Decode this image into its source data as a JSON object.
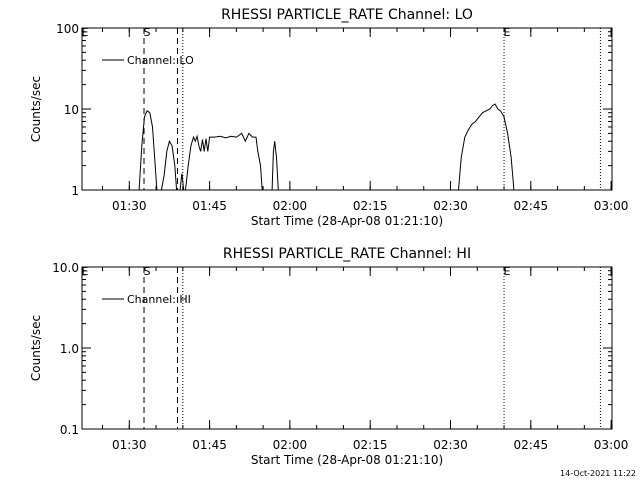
{
  "footer": {
    "date_stamp": "14-Oct-2021 11:22"
  },
  "chart_data": [
    {
      "type": "line",
      "title": "RHESSI PARTICLE_RATE Channel: LO",
      "xlabel": "Start Time (28-Apr-08 01:21:10)",
      "ylabel": "Counts/sec",
      "y_scale": "log",
      "ylim": [
        1,
        100
      ],
      "y_ticks": [
        {
          "value": 1,
          "label": "1"
        },
        {
          "value": 10,
          "label": "10"
        },
        {
          "value": 100,
          "label": "100"
        }
      ],
      "xlim": [
        "01:21:10",
        "03:00:10"
      ],
      "x_ticks": [
        "01:30",
        "01:45",
        "02:00",
        "02:15",
        "02:30",
        "02:45",
        "03:00"
      ],
      "legend": {
        "position": "top-left",
        "entries": [
          "Channel: LO"
        ]
      },
      "markers": [
        {
          "label": "E",
          "time": "01:21:10",
          "style": "none"
        },
        {
          "label": "S",
          "time": "01:32:45",
          "style": "dashed"
        },
        {
          "label": "",
          "time": "01:39:00",
          "style": "dashed"
        },
        {
          "label": "",
          "time": "01:40:00",
          "style": "dotted"
        },
        {
          "label": "E",
          "time": "02:40:00",
          "style": "dotted"
        },
        {
          "label": "",
          "time": "02:58:00",
          "style": "dotted"
        }
      ],
      "series": [
        {
          "name": "Channel: LO",
          "segments": [
            [
              [
                "01:31:50",
                1
              ],
              [
                "01:32:20",
                3.5
              ],
              [
                "01:32:50",
                8
              ],
              [
                "01:33:20",
                9.5
              ],
              [
                "01:33:50",
                9
              ],
              [
                "01:34:20",
                6
              ],
              [
                "01:34:50",
                2
              ],
              [
                "01:35:10",
                1
              ]
            ],
            [
              [
                "01:36:00",
                1
              ],
              [
                "01:36:30",
                1.5
              ],
              [
                "01:37:00",
                3
              ],
              [
                "01:37:30",
                4
              ],
              [
                "01:38:00",
                3.5
              ],
              [
                "01:38:30",
                2
              ],
              [
                "01:38:50",
                1
              ]
            ],
            [
              [
                "01:39:30",
                1
              ],
              [
                "01:39:50",
                1.6
              ],
              [
                "01:40:10",
                1
              ]
            ],
            [
              [
                "01:40:30",
                1
              ],
              [
                "01:41:00",
                2
              ],
              [
                "01:41:30",
                3.5
              ],
              [
                "01:42:00",
                4.5
              ],
              [
                "01:42:20",
                4
              ],
              [
                "01:42:40",
                4.6
              ],
              [
                "01:43:00",
                3.5
              ],
              [
                "01:43:20",
                3
              ],
              [
                "01:43:40",
                4.2
              ],
              [
                "01:44:00",
                3
              ],
              [
                "01:44:20",
                4.3
              ],
              [
                "01:44:40",
                3
              ],
              [
                "01:45:00",
                4.5
              ],
              [
                "01:46:00",
                4.5
              ],
              [
                "01:47:00",
                4.6
              ],
              [
                "01:48:00",
                4.4
              ],
              [
                "01:49:00",
                4.6
              ],
              [
                "01:50:00",
                4.5
              ],
              [
                "01:51:00",
                5
              ],
              [
                "01:51:40",
                4
              ],
              [
                "01:52:20",
                5
              ],
              [
                "01:53:00",
                4.5
              ],
              [
                "01:53:40",
                4.5
              ],
              [
                "01:54:00",
                3
              ],
              [
                "01:54:30",
                2
              ],
              [
                "01:54:50",
                1
              ]
            ],
            [
              [
                "01:56:40",
                1
              ],
              [
                "01:56:55",
                3
              ],
              [
                "01:57:10",
                4
              ],
              [
                "01:57:30",
                2.5
              ],
              [
                "01:57:50",
                1
              ]
            ],
            [
              [
                "02:31:30",
                1
              ],
              [
                "02:32:00",
                2.5
              ],
              [
                "02:32:40",
                4.5
              ],
              [
                "02:33:20",
                5.5
              ],
              [
                "02:34:00",
                6.5
              ],
              [
                "02:34:40",
                7
              ],
              [
                "02:35:20",
                8
              ],
              [
                "02:36:00",
                9
              ],
              [
                "02:36:40",
                9.5
              ],
              [
                "02:37:20",
                10
              ],
              [
                "02:37:50",
                11
              ],
              [
                "02:38:20",
                11.5
              ],
              [
                "02:38:50",
                10
              ],
              [
                "02:39:20",
                9.5
              ],
              [
                "02:40:00",
                8
              ],
              [
                "02:40:40",
                5
              ],
              [
                "02:41:20",
                2.5
              ],
              [
                "02:41:50",
                1
              ]
            ]
          ]
        }
      ]
    },
    {
      "type": "line",
      "title": "RHESSI PARTICLE_RATE Channel: HI",
      "xlabel": "Start Time (28-Apr-08 01:21:10)",
      "ylabel": "Counts/sec",
      "y_scale": "log",
      "ylim": [
        0.1,
        10
      ],
      "y_ticks": [
        {
          "value": 0.1,
          "label": "0.1"
        },
        {
          "value": 1,
          "label": "1.0"
        },
        {
          "value": 10,
          "label": "10.0"
        }
      ],
      "xlim": [
        "01:21:10",
        "03:00:10"
      ],
      "x_ticks": [
        "01:30",
        "01:45",
        "02:00",
        "02:15",
        "02:30",
        "02:45",
        "03:00"
      ],
      "legend": {
        "position": "top-left",
        "entries": [
          "Channel: HI"
        ]
      },
      "markers": [
        {
          "label": "E",
          "time": "01:21:10",
          "style": "none"
        },
        {
          "label": "S",
          "time": "01:32:45",
          "style": "dashed"
        },
        {
          "label": "",
          "time": "01:39:00",
          "style": "dashed"
        },
        {
          "label": "",
          "time": "01:40:00",
          "style": "dotted"
        },
        {
          "label": "E",
          "time": "02:40:00",
          "style": "dotted"
        },
        {
          "label": "",
          "time": "02:58:00",
          "style": "dotted"
        }
      ],
      "series": [
        {
          "name": "Channel: HI",
          "segments": []
        }
      ]
    }
  ]
}
